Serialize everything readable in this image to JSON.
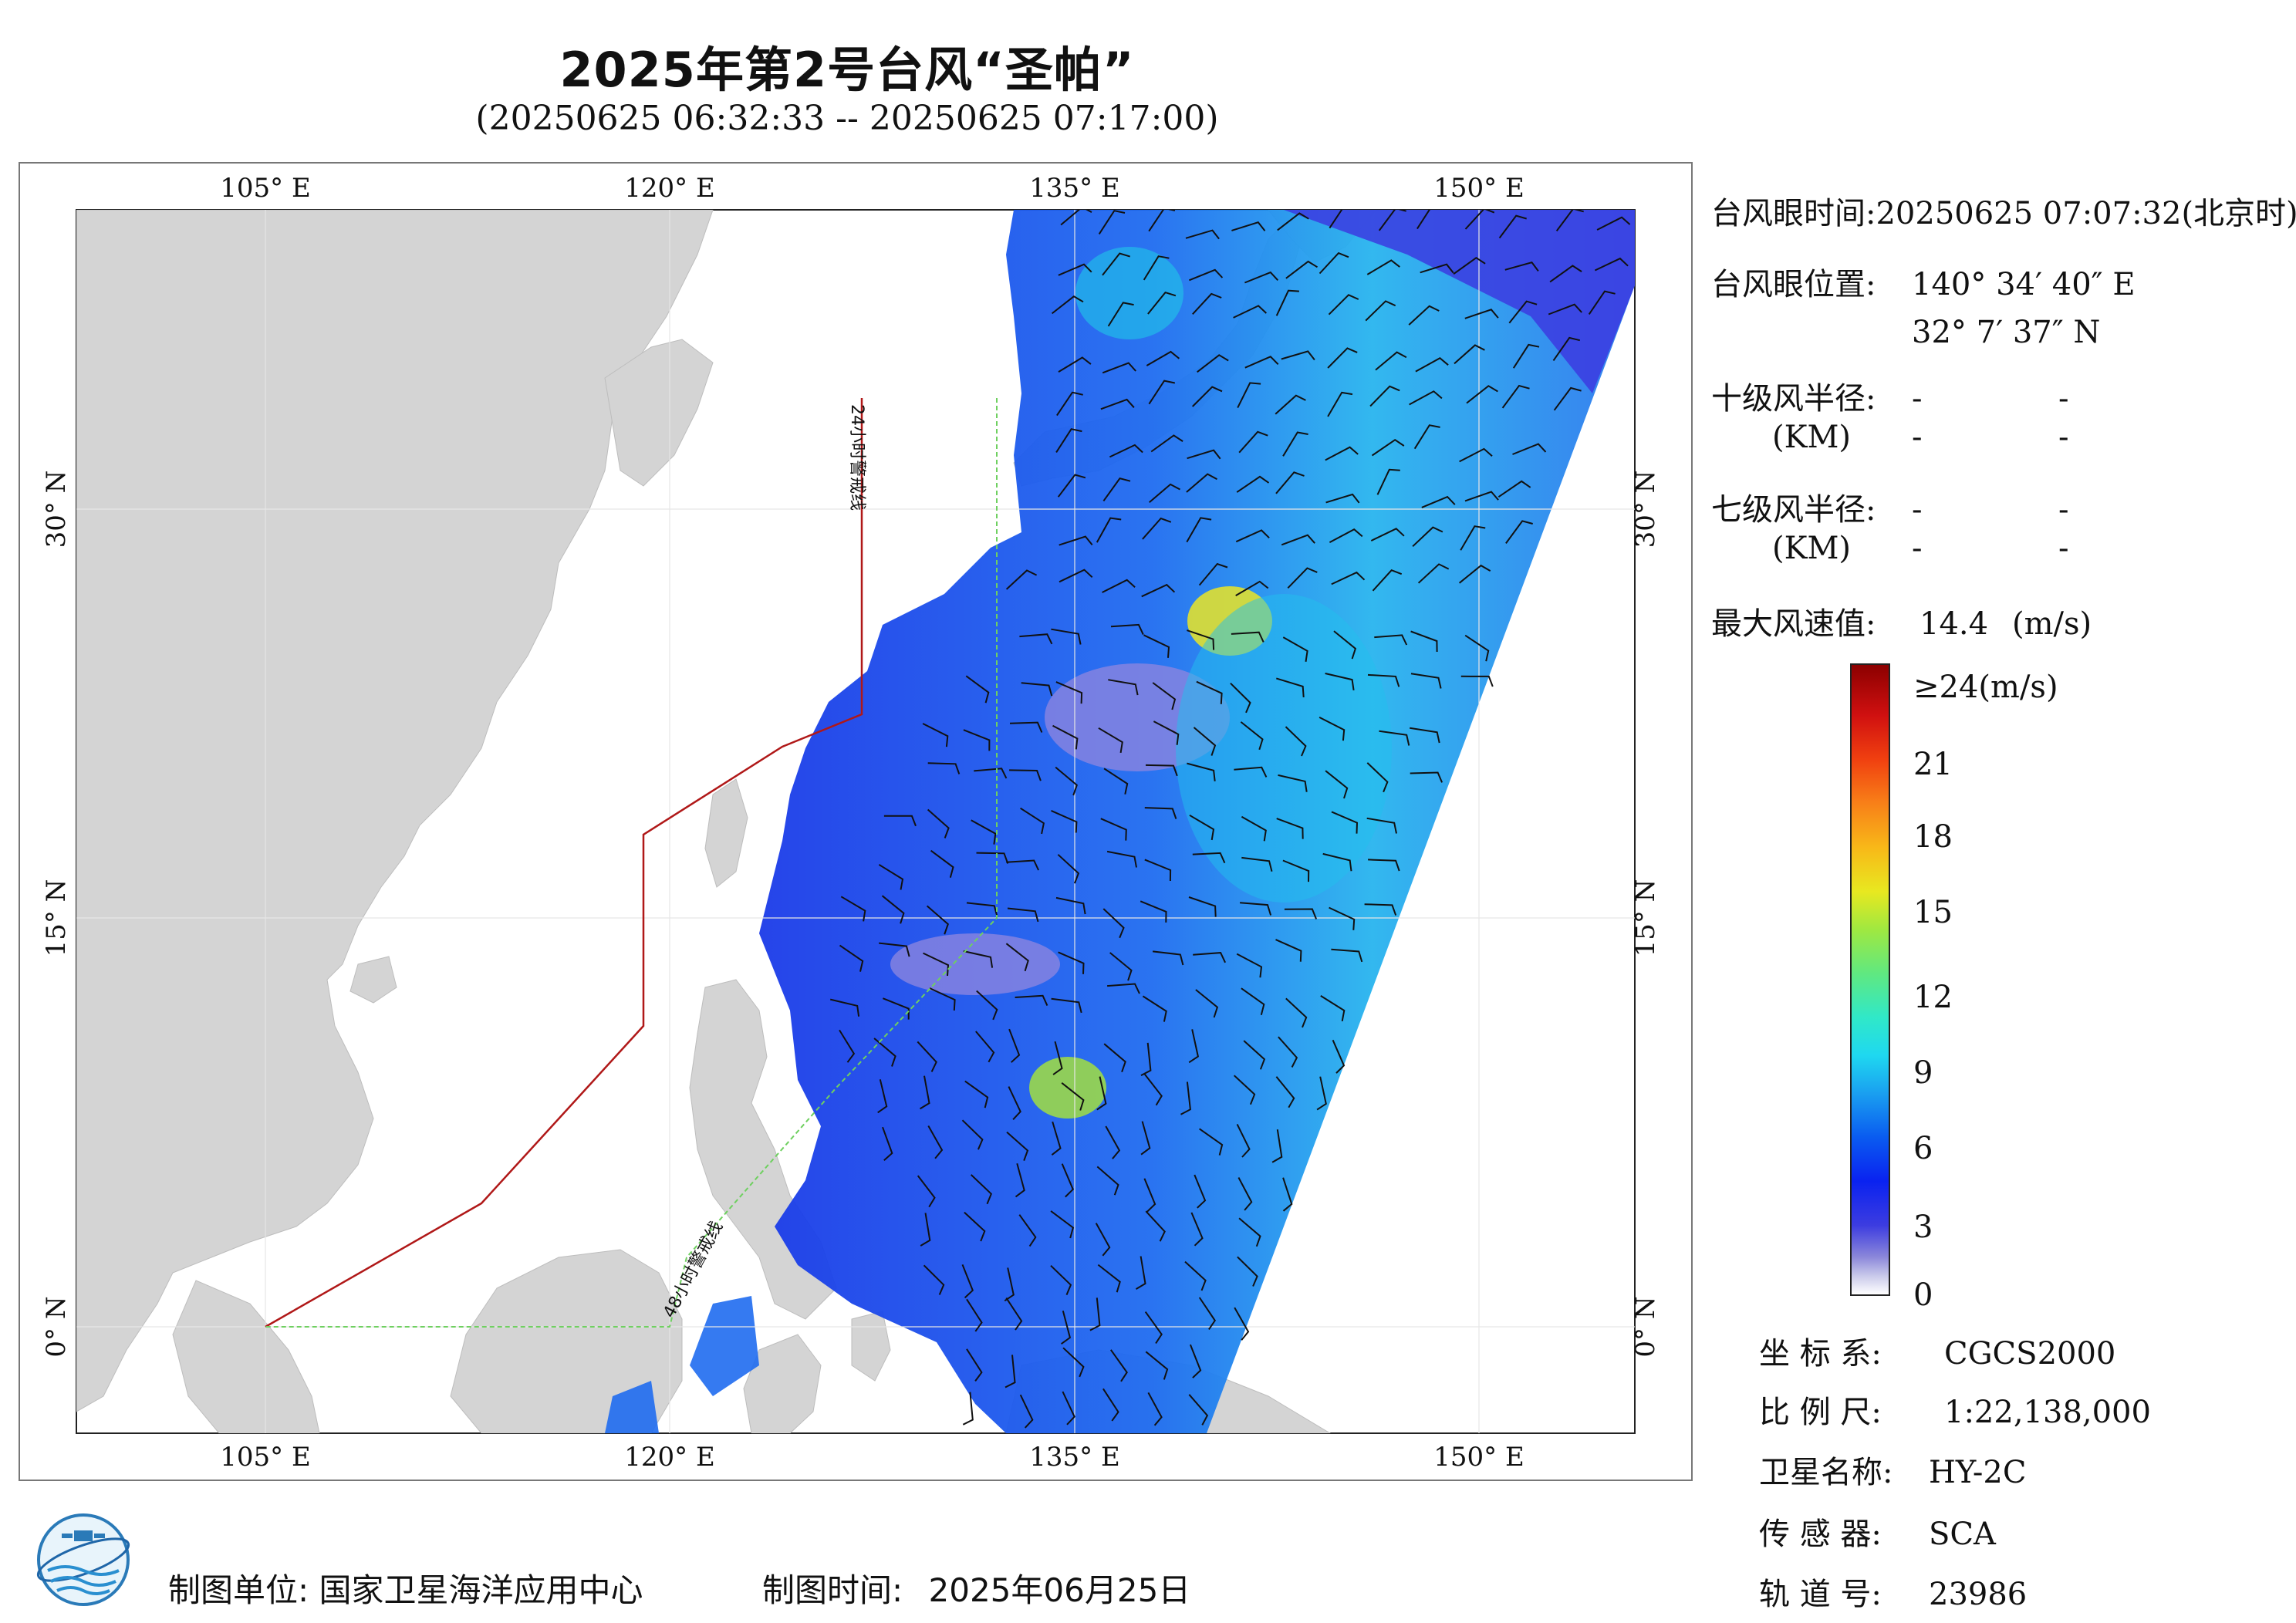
{
  "title": "2025年第2号台风“圣帕”",
  "subtitle": "(20250625 06:32:33 -- 20250625 07:17:00)",
  "map": {
    "lon_labels_top": [
      "105° E",
      "120° E",
      "135° E",
      "150° E"
    ],
    "lon_labels_bottom": [
      "105° E",
      "120° E",
      "135° E",
      "150° E"
    ],
    "lat_labels_left": [
      "30° N",
      "15° N",
      "0° N"
    ],
    "lat_labels_right": [
      "30° N",
      "15° N",
      "0° N"
    ],
    "warning_line_24h": "24小时警戒线",
    "warning_line_48h": "48小时警戒线",
    "colors": {
      "land": "#d4d4d4",
      "ocean": "#ffffff",
      "warning_24h": "#b01818",
      "warning_48h": "#6fd060"
    }
  },
  "info": {
    "eye_time_label": "台风眼时间:",
    "eye_time_value": "20250625 07:07:32(北京时)",
    "eye_pos_label": "台风眼位置:",
    "eye_lon": "140° 34′ 40″ E",
    "eye_lat": "32° 7′ 37″ N",
    "r10_label": "十级风半径:",
    "r7_label": "七级风半径:",
    "km_label": "(KM)",
    "dash": "-",
    "max_wind_label": "最大风速值:",
    "max_wind_value": "14.4",
    "max_wind_unit": "(m/s)"
  },
  "colorbar": {
    "top_label": "≥24(m/s)",
    "ticks": [
      "21",
      "18",
      "15",
      "12",
      "9",
      "6",
      "3",
      "0"
    ]
  },
  "meta": {
    "crs_label": "坐 标 系:",
    "crs_value": "CGCS2000",
    "scale_label": "比 例 尺:",
    "scale_value": "1:22,138,000",
    "satellite_label": "卫星名称:",
    "satellite_value": "HY-2C",
    "sensor_label": "传 感 器:",
    "sensor_value": "SCA",
    "orbit_label": "轨 道 号:",
    "orbit_value": "23986"
  },
  "footer": {
    "org_label": "制图单位:",
    "org_value": "国家卫星海洋应用中心",
    "date_label": "制图时间:",
    "date_value": "2025年06月25日"
  }
}
